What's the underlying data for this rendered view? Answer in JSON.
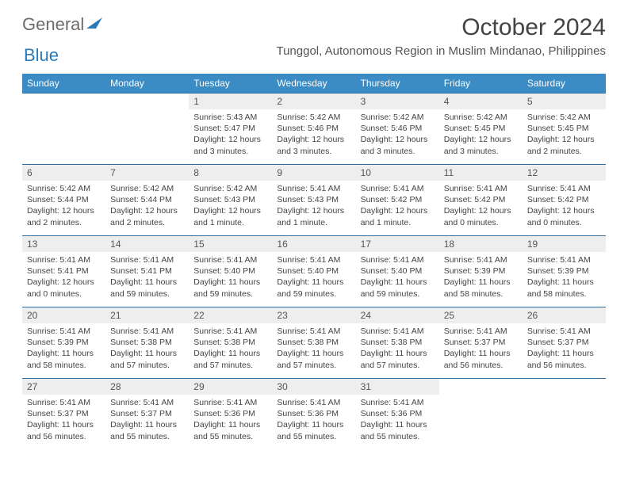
{
  "logo": {
    "general": "General",
    "blue": "Blue"
  },
  "title": "October 2024",
  "location": "Tunggol, Autonomous Region in Muslim Mindanao, Philippines",
  "colors": {
    "header_bg": "#3b8bc4",
    "header_text": "#ffffff",
    "week_border": "#2f6fa3",
    "daynum_bg": "#eeeeee",
    "text": "#444444",
    "logo_general": "#6c6c6c",
    "logo_blue": "#2a7ab8"
  },
  "dow": [
    "Sunday",
    "Monday",
    "Tuesday",
    "Wednesday",
    "Thursday",
    "Friday",
    "Saturday"
  ],
  "first_dow": 2,
  "days": [
    {
      "n": 1,
      "sunrise": "5:43 AM",
      "sunset": "5:47 PM",
      "daylight": "12 hours and 3 minutes."
    },
    {
      "n": 2,
      "sunrise": "5:42 AM",
      "sunset": "5:46 PM",
      "daylight": "12 hours and 3 minutes."
    },
    {
      "n": 3,
      "sunrise": "5:42 AM",
      "sunset": "5:46 PM",
      "daylight": "12 hours and 3 minutes."
    },
    {
      "n": 4,
      "sunrise": "5:42 AM",
      "sunset": "5:45 PM",
      "daylight": "12 hours and 3 minutes."
    },
    {
      "n": 5,
      "sunrise": "5:42 AM",
      "sunset": "5:45 PM",
      "daylight": "12 hours and 2 minutes."
    },
    {
      "n": 6,
      "sunrise": "5:42 AM",
      "sunset": "5:44 PM",
      "daylight": "12 hours and 2 minutes."
    },
    {
      "n": 7,
      "sunrise": "5:42 AM",
      "sunset": "5:44 PM",
      "daylight": "12 hours and 2 minutes."
    },
    {
      "n": 8,
      "sunrise": "5:42 AM",
      "sunset": "5:43 PM",
      "daylight": "12 hours and 1 minute."
    },
    {
      "n": 9,
      "sunrise": "5:41 AM",
      "sunset": "5:43 PM",
      "daylight": "12 hours and 1 minute."
    },
    {
      "n": 10,
      "sunrise": "5:41 AM",
      "sunset": "5:42 PM",
      "daylight": "12 hours and 1 minute."
    },
    {
      "n": 11,
      "sunrise": "5:41 AM",
      "sunset": "5:42 PM",
      "daylight": "12 hours and 0 minutes."
    },
    {
      "n": 12,
      "sunrise": "5:41 AM",
      "sunset": "5:42 PM",
      "daylight": "12 hours and 0 minutes."
    },
    {
      "n": 13,
      "sunrise": "5:41 AM",
      "sunset": "5:41 PM",
      "daylight": "12 hours and 0 minutes."
    },
    {
      "n": 14,
      "sunrise": "5:41 AM",
      "sunset": "5:41 PM",
      "daylight": "11 hours and 59 minutes."
    },
    {
      "n": 15,
      "sunrise": "5:41 AM",
      "sunset": "5:40 PM",
      "daylight": "11 hours and 59 minutes."
    },
    {
      "n": 16,
      "sunrise": "5:41 AM",
      "sunset": "5:40 PM",
      "daylight": "11 hours and 59 minutes."
    },
    {
      "n": 17,
      "sunrise": "5:41 AM",
      "sunset": "5:40 PM",
      "daylight": "11 hours and 59 minutes."
    },
    {
      "n": 18,
      "sunrise": "5:41 AM",
      "sunset": "5:39 PM",
      "daylight": "11 hours and 58 minutes."
    },
    {
      "n": 19,
      "sunrise": "5:41 AM",
      "sunset": "5:39 PM",
      "daylight": "11 hours and 58 minutes."
    },
    {
      "n": 20,
      "sunrise": "5:41 AM",
      "sunset": "5:39 PM",
      "daylight": "11 hours and 58 minutes."
    },
    {
      "n": 21,
      "sunrise": "5:41 AM",
      "sunset": "5:38 PM",
      "daylight": "11 hours and 57 minutes."
    },
    {
      "n": 22,
      "sunrise": "5:41 AM",
      "sunset": "5:38 PM",
      "daylight": "11 hours and 57 minutes."
    },
    {
      "n": 23,
      "sunrise": "5:41 AM",
      "sunset": "5:38 PM",
      "daylight": "11 hours and 57 minutes."
    },
    {
      "n": 24,
      "sunrise": "5:41 AM",
      "sunset": "5:38 PM",
      "daylight": "11 hours and 57 minutes."
    },
    {
      "n": 25,
      "sunrise": "5:41 AM",
      "sunset": "5:37 PM",
      "daylight": "11 hours and 56 minutes."
    },
    {
      "n": 26,
      "sunrise": "5:41 AM",
      "sunset": "5:37 PM",
      "daylight": "11 hours and 56 minutes."
    },
    {
      "n": 27,
      "sunrise": "5:41 AM",
      "sunset": "5:37 PM",
      "daylight": "11 hours and 56 minutes."
    },
    {
      "n": 28,
      "sunrise": "5:41 AM",
      "sunset": "5:37 PM",
      "daylight": "11 hours and 55 minutes."
    },
    {
      "n": 29,
      "sunrise": "5:41 AM",
      "sunset": "5:36 PM",
      "daylight": "11 hours and 55 minutes."
    },
    {
      "n": 30,
      "sunrise": "5:41 AM",
      "sunset": "5:36 PM",
      "daylight": "11 hours and 55 minutes."
    },
    {
      "n": 31,
      "sunrise": "5:41 AM",
      "sunset": "5:36 PM",
      "daylight": "11 hours and 55 minutes."
    }
  ],
  "labels": {
    "sunrise": "Sunrise:",
    "sunset": "Sunset:",
    "daylight": "Daylight:"
  }
}
